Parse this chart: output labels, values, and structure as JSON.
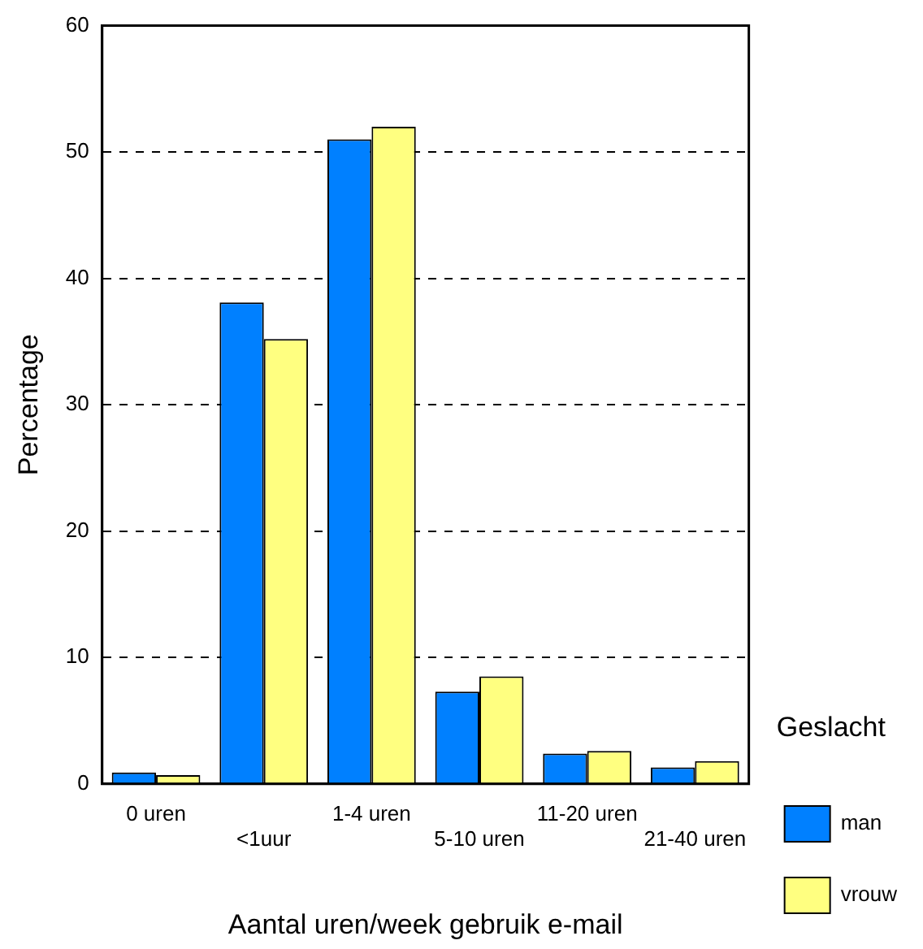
{
  "chart_data": {
    "type": "bar",
    "xlabel": "Aantal uren/week gebruik e-mail",
    "ylabel": "Percentage",
    "legend_title": "Geslacht",
    "categories": [
      "0 uren",
      "<1uur",
      "1-4 uren",
      "5-10 uren",
      "11-20 uren",
      "21-40 uren"
    ],
    "series": [
      {
        "name": "man",
        "color": "#0080ff",
        "values": [
          0.9,
          38.1,
          51,
          7.3,
          2.4,
          1.3
        ]
      },
      {
        "name": "vrouw",
        "color": "#ffff80",
        "values": [
          0.7,
          35.2,
          52,
          8.5,
          2.6,
          1.8
        ]
      }
    ],
    "ylim": [
      0,
      60
    ],
    "yticks": [
      0,
      10,
      20,
      30,
      40,
      50,
      60
    ],
    "grid": "y",
    "legend": "right"
  }
}
